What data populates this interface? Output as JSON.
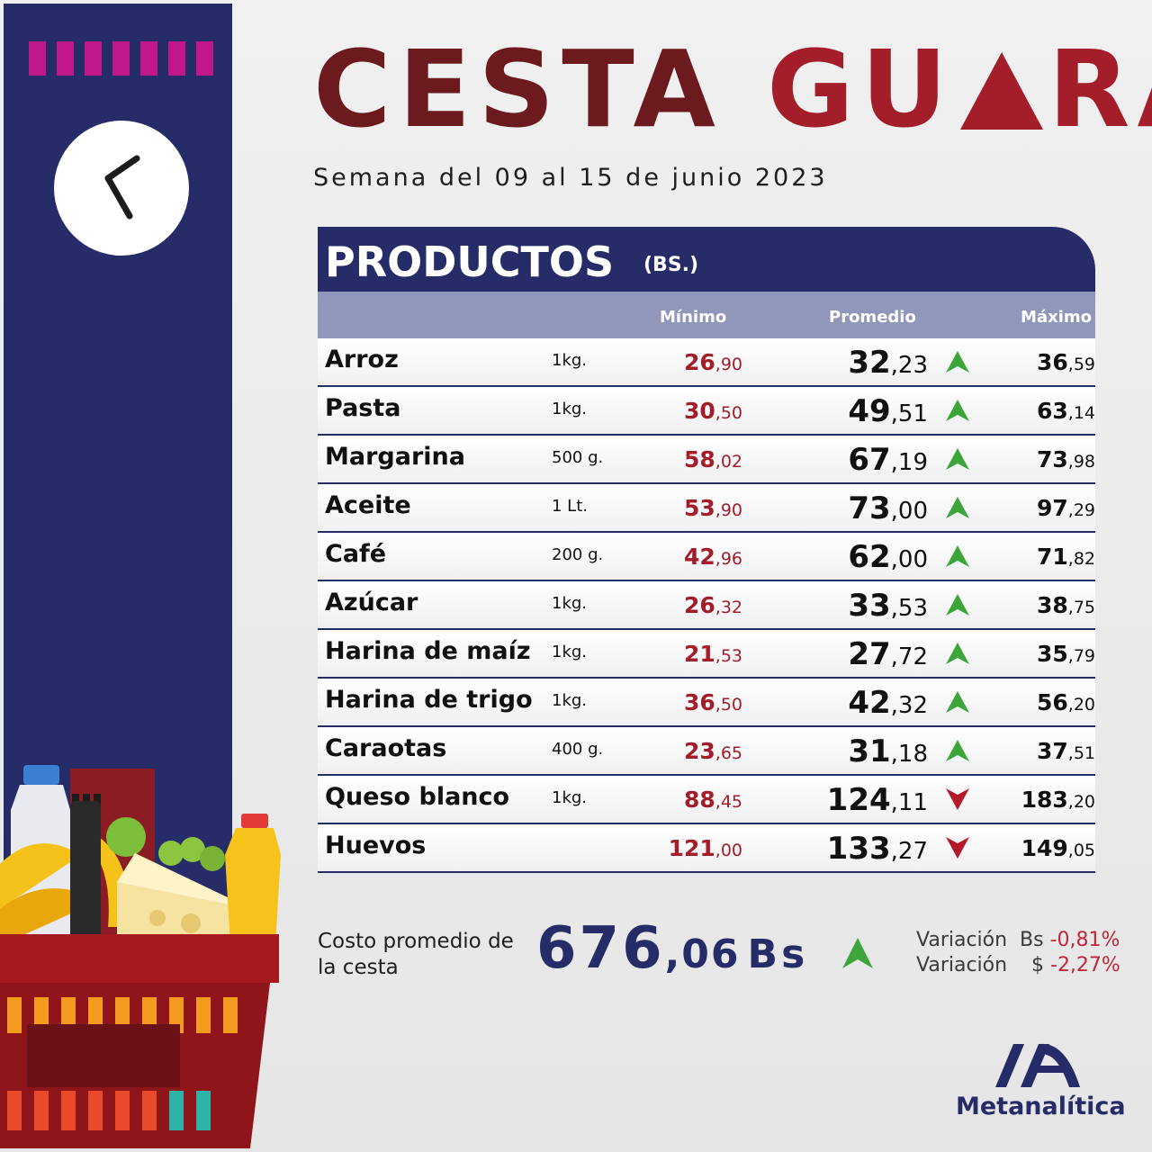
{
  "header": {
    "title_part1": "CESTA",
    "title_part2_a": "GU",
    "title_part2_b": "RA",
    "subtitle": "Semana del 09 al 15 de junio 2023"
  },
  "table": {
    "title": "PRODUCTOS",
    "unit": "(BS.)",
    "col_min": "Mínimo",
    "col_prom": "Promedio",
    "col_max": "Máximo",
    "rows": [
      {
        "name": "Arroz",
        "qty": "1kg.",
        "min_int": "26",
        "min_dec": ",90",
        "prom_int": "32",
        "prom_dec": ",23",
        "trend": "up",
        "max_int": "36",
        "max_dec": ",59"
      },
      {
        "name": "Pasta",
        "qty": "1kg.",
        "min_int": "30",
        "min_dec": ",50",
        "prom_int": "49",
        "prom_dec": ",51",
        "trend": "up",
        "max_int": "63",
        "max_dec": ",14"
      },
      {
        "name": "Margarina",
        "qty": "500 g.",
        "min_int": "58",
        "min_dec": ",02",
        "prom_int": "67",
        "prom_dec": ",19",
        "trend": "up",
        "max_int": "73",
        "max_dec": ",98"
      },
      {
        "name": "Aceite",
        "qty": "1 Lt.",
        "min_int": "53",
        "min_dec": ",90",
        "prom_int": "73",
        "prom_dec": ",00",
        "trend": "up",
        "max_int": "97",
        "max_dec": ",29"
      },
      {
        "name": "Café",
        "qty": "200 g.",
        "min_int": "42",
        "min_dec": ",96",
        "prom_int": "62",
        "prom_dec": ",00",
        "trend": "up",
        "max_int": "71",
        "max_dec": ",82"
      },
      {
        "name": "Azúcar",
        "qty": "1kg.",
        "min_int": "26",
        "min_dec": ",32",
        "prom_int": "33",
        "prom_dec": ",53",
        "trend": "up",
        "max_int": "38",
        "max_dec": ",75"
      },
      {
        "name": "Harina de maíz",
        "qty": "1kg.",
        "min_int": "21",
        "min_dec": ",53",
        "prom_int": "27",
        "prom_dec": ",72",
        "trend": "up",
        "max_int": "35",
        "max_dec": ",79"
      },
      {
        "name": "Harina de trigo",
        "qty": "1kg.",
        "min_int": "36",
        "min_dec": ",50",
        "prom_int": "42",
        "prom_dec": ",32",
        "trend": "up",
        "max_int": "56",
        "max_dec": ",20"
      },
      {
        "name": "Caraotas",
        "qty": "400 g.",
        "min_int": "23",
        "min_dec": ",65",
        "prom_int": "31",
        "prom_dec": ",18",
        "trend": "up",
        "max_int": "37",
        "max_dec": ",51"
      },
      {
        "name": "Queso blanco",
        "qty": "1kg.",
        "min_int": "88",
        "min_dec": ",45",
        "prom_int": "124",
        "prom_dec": ",11",
        "trend": "down",
        "max_int": "183",
        "max_dec": ",20"
      },
      {
        "name": "Huevos",
        "qty": "",
        "min_int": "121",
        "min_dec": ",00",
        "prom_int": "133",
        "prom_dec": ",27",
        "trend": "down",
        "max_int": "149",
        "max_dec": ",05"
      }
    ]
  },
  "footer": {
    "cost_label": "Costo promedio de la cesta",
    "cost_int": "676",
    "cost_dec": ",06",
    "cost_currency": "Bs",
    "cost_trend": "up",
    "variation_label_1": "Variación",
    "variation_cur_1": "Bs",
    "variation_val_1": "-0,81%",
    "variation_label_2": "Variación",
    "variation_cur_2": "$",
    "variation_val_2": "-2,27%",
    "brand": "Metanalítica"
  },
  "colors": {
    "navy": "#262c68",
    "dark_red": "#6c1a1e",
    "red": "#a31d2a",
    "magenta": "#c0188a",
    "green_arrow": "#3da63a",
    "red_arrow": "#b4192a"
  },
  "icons": {
    "clock": "clock-icon",
    "up": "arrow-up-icon",
    "down": "arrow-down-icon",
    "basket": "grocery-basket-illustration",
    "logo": "metanalitica-logo"
  }
}
